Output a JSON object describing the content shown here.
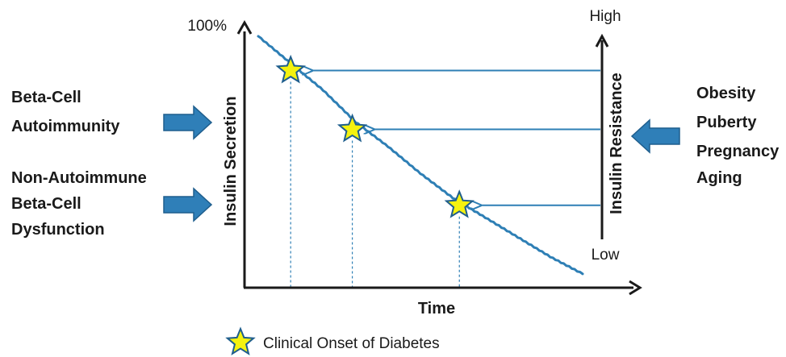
{
  "chart_data": {
    "type": "line",
    "x_axis_label": "Time",
    "left_axis_label": "Insulin Secretion",
    "left_axis_top_tick": "100%",
    "right_axis_label": "Insulin Resistance",
    "right_axis_top": "High",
    "right_axis_bottom": "Low",
    "series": [
      {
        "values": [
          {
            "x": 0.0,
            "y": 100
          },
          {
            "x": 0.1,
            "y": 89
          },
          {
            "x": 0.2,
            "y": 78
          },
          {
            "x": 0.3,
            "y": 65
          },
          {
            "x": 0.4,
            "y": 55
          },
          {
            "x": 0.5,
            "y": 44
          },
          {
            "x": 0.6,
            "y": 34
          },
          {
            "x": 0.7,
            "y": 26
          },
          {
            "x": 0.8,
            "y": 18
          },
          {
            "x": 0.9,
            "y": 10
          },
          {
            "x": 1.0,
            "y": 3
          }
        ]
      }
    ],
    "onset_points": [
      {
        "x": 0.1,
        "y": 86
      },
      {
        "x": 0.29,
        "y": 62
      },
      {
        "x": 0.62,
        "y": 31
      }
    ],
    "legend": "Clinical Onset of Diabetes"
  },
  "left_factors": [
    {
      "lines": [
        "Beta-Cell",
        "Autoimmunity"
      ]
    },
    {
      "lines": [
        "Non-Autoimmune",
        "Beta-Cell",
        "Dysfunction"
      ]
    }
  ],
  "right_factors": [
    "Obesity",
    "Puberty",
    "Pregnancy",
    "Aging"
  ],
  "colors": {
    "curve": "#2e7fb5",
    "arrow": "#2e7fb5",
    "block_arrow_fill": "#2f7fb8",
    "block_arrow_edge": "#1f5e8d",
    "star_fill": "#f5f20f",
    "star_edge": "#1f5e8d",
    "axis": "#1a1a1a"
  },
  "icons": {
    "onset_marker": "star-icon",
    "factor_arrow": "block-arrow-icon"
  }
}
